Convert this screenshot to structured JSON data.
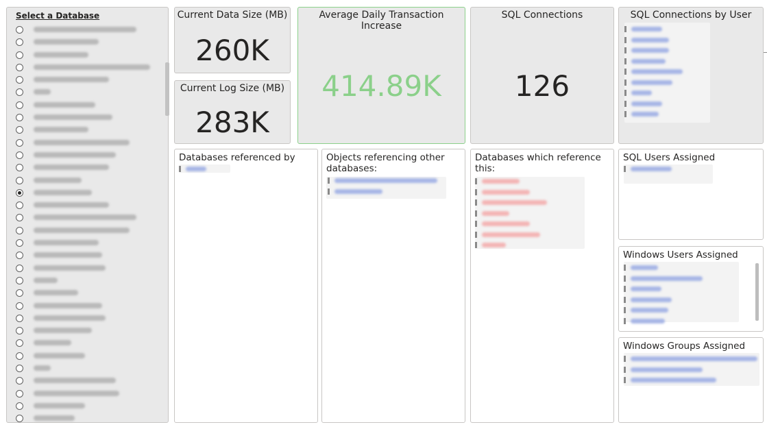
{
  "slicer": {
    "title": "Select a Database",
    "items": [
      {
        "w": 150,
        "selected": false
      },
      {
        "w": 95,
        "selected": false
      },
      {
        "w": 80,
        "selected": false
      },
      {
        "w": 170,
        "selected": false
      },
      {
        "w": 110,
        "selected": false
      },
      {
        "w": 25,
        "selected": false
      },
      {
        "w": 90,
        "selected": false
      },
      {
        "w": 115,
        "selected": false
      },
      {
        "w": 80,
        "selected": false
      },
      {
        "w": 140,
        "selected": false
      },
      {
        "w": 120,
        "selected": false
      },
      {
        "w": 110,
        "selected": false
      },
      {
        "w": 70,
        "selected": false
      },
      {
        "w": 85,
        "selected": true
      },
      {
        "w": 110,
        "selected": false
      },
      {
        "w": 150,
        "selected": false
      },
      {
        "w": 140,
        "selected": false
      },
      {
        "w": 95,
        "selected": false
      },
      {
        "w": 100,
        "selected": false
      },
      {
        "w": 105,
        "selected": false
      },
      {
        "w": 35,
        "selected": false
      },
      {
        "w": 65,
        "selected": false
      },
      {
        "w": 100,
        "selected": false
      },
      {
        "w": 105,
        "selected": false
      },
      {
        "w": 85,
        "selected": false
      },
      {
        "w": 55,
        "selected": false
      },
      {
        "w": 75,
        "selected": false
      },
      {
        "w": 25,
        "selected": false
      },
      {
        "w": 120,
        "selected": false
      },
      {
        "w": 125,
        "selected": false
      },
      {
        "w": 75,
        "selected": false
      },
      {
        "w": 60,
        "selected": false
      }
    ]
  },
  "cards": {
    "data_size": {
      "title": "Current Data Size (MB)",
      "value": "260K"
    },
    "log_size": {
      "title": "Current Log Size (MB)",
      "value": "283K"
    },
    "avg_increase": {
      "title": "Average Daily Transaction Increase",
      "value": "414.89K",
      "color": "#8bd08a"
    },
    "sql_connections": {
      "title": "SQL Connections",
      "value": "126"
    }
  },
  "panels": {
    "connections_by_user": {
      "title": "SQL Connections by User",
      "item_widths": [
        45,
        55,
        55,
        50,
        75,
        60,
        30,
        45,
        40
      ]
    },
    "databases_referenced": {
      "title": "Databases referenced by this:",
      "item_widths": [
        30
      ]
    },
    "objects_referencing": {
      "title": "Objects referencing other databases:",
      "item_widths": [
        150,
        70
      ]
    },
    "databases_which_reference": {
      "title": "Databases which reference this:",
      "item_widths": [
        55,
        70,
        95,
        40,
        70,
        85,
        35
      ]
    },
    "sql_users": {
      "title": "SQL Users Assigned",
      "item_widths": [
        60
      ]
    },
    "windows_users": {
      "title": "Windows Users Assigned",
      "item_widths": [
        40,
        105,
        45,
        60,
        55,
        50
      ]
    },
    "windows_groups": {
      "title": "Windows Groups Assigned",
      "item_widths": [
        185,
        105,
        125
      ]
    }
  }
}
